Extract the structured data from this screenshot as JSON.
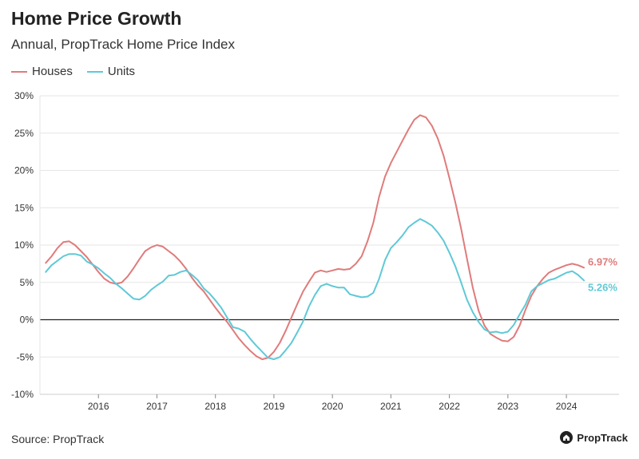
{
  "header": {
    "title": "Home Price Growth",
    "subtitle": "Annual, PropTrack Home Price Index"
  },
  "footer": {
    "source": "Source: PropTrack",
    "brand": "PropTrack"
  },
  "colors": {
    "houses": "#e07b7b",
    "units": "#5fc9d6",
    "axis": "#222222",
    "grid": "#e6e6e6"
  },
  "chart_data": {
    "type": "line",
    "title": "Home Price Growth",
    "subtitle": "Annual, PropTrack Home Price Index",
    "xlabel": "",
    "ylabel": "",
    "xlim": [
      2015.0,
      2024.9
    ],
    "ylim": [
      -10,
      30
    ],
    "y_ticks": [
      -10,
      -5,
      0,
      5,
      10,
      15,
      20,
      25,
      30
    ],
    "y_tick_labels": [
      "-10%",
      "-5%",
      "0%",
      "5%",
      "10%",
      "15%",
      "20%",
      "25%",
      "30%"
    ],
    "x_ticks": [
      2016,
      2017,
      2018,
      2019,
      2020,
      2021,
      2022,
      2023,
      2024
    ],
    "x_tick_labels": [
      "2016",
      "2017",
      "2018",
      "2019",
      "2020",
      "2021",
      "2022",
      "2023",
      "2024"
    ],
    "grid": "horizontal",
    "legend_position": "top-left",
    "series": [
      {
        "name": "Houses",
        "color": "#e07b7b",
        "end_label": "6.97%",
        "points": [
          [
            2015.1,
            7.6
          ],
          [
            2015.2,
            8.5
          ],
          [
            2015.3,
            9.6
          ],
          [
            2015.4,
            10.4
          ],
          [
            2015.5,
            10.5
          ],
          [
            2015.6,
            10.0
          ],
          [
            2015.7,
            9.2
          ],
          [
            2015.8,
            8.4
          ],
          [
            2015.9,
            7.4
          ],
          [
            2016.0,
            6.4
          ],
          [
            2016.1,
            5.5
          ],
          [
            2016.2,
            5.0
          ],
          [
            2016.3,
            4.8
          ],
          [
            2016.4,
            5.0
          ],
          [
            2016.5,
            5.8
          ],
          [
            2016.6,
            6.9
          ],
          [
            2016.7,
            8.1
          ],
          [
            2016.8,
            9.2
          ],
          [
            2016.9,
            9.7
          ],
          [
            2017.0,
            10.0
          ],
          [
            2017.1,
            9.8
          ],
          [
            2017.2,
            9.2
          ],
          [
            2017.3,
            8.6
          ],
          [
            2017.4,
            7.8
          ],
          [
            2017.5,
            6.8
          ],
          [
            2017.6,
            5.6
          ],
          [
            2017.7,
            4.6
          ],
          [
            2017.8,
            3.8
          ],
          [
            2017.9,
            2.7
          ],
          [
            2018.0,
            1.6
          ],
          [
            2018.1,
            0.6
          ],
          [
            2018.2,
            -0.3
          ],
          [
            2018.3,
            -1.4
          ],
          [
            2018.4,
            -2.5
          ],
          [
            2018.5,
            -3.4
          ],
          [
            2018.6,
            -4.2
          ],
          [
            2018.7,
            -4.9
          ],
          [
            2018.8,
            -5.3
          ],
          [
            2018.9,
            -5.1
          ],
          [
            2019.0,
            -4.3
          ],
          [
            2019.1,
            -3.1
          ],
          [
            2019.2,
            -1.5
          ],
          [
            2019.3,
            0.3
          ],
          [
            2019.4,
            2.1
          ],
          [
            2019.5,
            3.8
          ],
          [
            2019.6,
            5.1
          ],
          [
            2019.7,
            6.3
          ],
          [
            2019.8,
            6.6
          ],
          [
            2019.9,
            6.4
          ],
          [
            2020.0,
            6.6
          ],
          [
            2020.1,
            6.8
          ],
          [
            2020.2,
            6.7
          ],
          [
            2020.3,
            6.8
          ],
          [
            2020.4,
            7.5
          ],
          [
            2020.5,
            8.5
          ],
          [
            2020.6,
            10.5
          ],
          [
            2020.7,
            13.0
          ],
          [
            2020.8,
            16.5
          ],
          [
            2020.9,
            19.2
          ],
          [
            2021.0,
            21.0
          ],
          [
            2021.1,
            22.5
          ],
          [
            2021.2,
            24.0
          ],
          [
            2021.3,
            25.5
          ],
          [
            2021.4,
            26.8
          ],
          [
            2021.5,
            27.4
          ],
          [
            2021.6,
            27.1
          ],
          [
            2021.7,
            26.0
          ],
          [
            2021.8,
            24.3
          ],
          [
            2021.9,
            22.0
          ],
          [
            2022.0,
            19.0
          ],
          [
            2022.1,
            15.8
          ],
          [
            2022.2,
            12.2
          ],
          [
            2022.3,
            8.2
          ],
          [
            2022.4,
            4.3
          ],
          [
            2022.5,
            1.2
          ],
          [
            2022.6,
            -0.8
          ],
          [
            2022.7,
            -1.9
          ],
          [
            2022.8,
            -2.4
          ],
          [
            2022.9,
            -2.8
          ],
          [
            2023.0,
            -2.9
          ],
          [
            2023.1,
            -2.3
          ],
          [
            2023.2,
            -0.8
          ],
          [
            2023.3,
            1.3
          ],
          [
            2023.4,
            3.2
          ],
          [
            2023.5,
            4.5
          ],
          [
            2023.6,
            5.5
          ],
          [
            2023.7,
            6.3
          ],
          [
            2023.8,
            6.7
          ],
          [
            2023.9,
            7.0
          ],
          [
            2024.0,
            7.3
          ],
          [
            2024.1,
            7.5
          ],
          [
            2024.2,
            7.3
          ],
          [
            2024.3,
            6.97
          ]
        ]
      },
      {
        "name": "Units",
        "color": "#5fc9d6",
        "end_label": "5.26%",
        "points": [
          [
            2015.1,
            6.4
          ],
          [
            2015.2,
            7.3
          ],
          [
            2015.3,
            7.9
          ],
          [
            2015.4,
            8.5
          ],
          [
            2015.5,
            8.8
          ],
          [
            2015.6,
            8.8
          ],
          [
            2015.7,
            8.6
          ],
          [
            2015.8,
            7.8
          ],
          [
            2015.9,
            7.4
          ],
          [
            2016.0,
            6.9
          ],
          [
            2016.1,
            6.2
          ],
          [
            2016.2,
            5.6
          ],
          [
            2016.3,
            4.8
          ],
          [
            2016.4,
            4.2
          ],
          [
            2016.5,
            3.5
          ],
          [
            2016.6,
            2.8
          ],
          [
            2016.7,
            2.7
          ],
          [
            2016.8,
            3.2
          ],
          [
            2016.9,
            4.0
          ],
          [
            2017.0,
            4.6
          ],
          [
            2017.1,
            5.1
          ],
          [
            2017.2,
            5.9
          ],
          [
            2017.3,
            6.0
          ],
          [
            2017.4,
            6.4
          ],
          [
            2017.5,
            6.6
          ],
          [
            2017.6,
            6.0
          ],
          [
            2017.7,
            5.3
          ],
          [
            2017.8,
            4.2
          ],
          [
            2017.9,
            3.5
          ],
          [
            2018.0,
            2.6
          ],
          [
            2018.1,
            1.6
          ],
          [
            2018.2,
            0.3
          ],
          [
            2018.3,
            -1.0
          ],
          [
            2018.4,
            -1.2
          ],
          [
            2018.5,
            -1.6
          ],
          [
            2018.6,
            -2.6
          ],
          [
            2018.7,
            -3.5
          ],
          [
            2018.8,
            -4.3
          ],
          [
            2018.9,
            -5.1
          ],
          [
            2019.0,
            -5.3
          ],
          [
            2019.1,
            -5.0
          ],
          [
            2019.2,
            -4.1
          ],
          [
            2019.3,
            -3.1
          ],
          [
            2019.4,
            -1.7
          ],
          [
            2019.5,
            -0.2
          ],
          [
            2019.6,
            1.8
          ],
          [
            2019.7,
            3.3
          ],
          [
            2019.8,
            4.5
          ],
          [
            2019.9,
            4.8
          ],
          [
            2020.0,
            4.5
          ],
          [
            2020.1,
            4.3
          ],
          [
            2020.2,
            4.3
          ],
          [
            2020.3,
            3.4
          ],
          [
            2020.4,
            3.2
          ],
          [
            2020.5,
            3.0
          ],
          [
            2020.6,
            3.1
          ],
          [
            2020.7,
            3.6
          ],
          [
            2020.8,
            5.5
          ],
          [
            2020.9,
            8.0
          ],
          [
            2021.0,
            9.6
          ],
          [
            2021.1,
            10.4
          ],
          [
            2021.2,
            11.3
          ],
          [
            2021.3,
            12.4
          ],
          [
            2021.4,
            13.0
          ],
          [
            2021.5,
            13.5
          ],
          [
            2021.6,
            13.1
          ],
          [
            2021.7,
            12.6
          ],
          [
            2021.8,
            11.7
          ],
          [
            2021.9,
            10.6
          ],
          [
            2022.0,
            9.0
          ],
          [
            2022.1,
            7.2
          ],
          [
            2022.2,
            5.0
          ],
          [
            2022.3,
            2.7
          ],
          [
            2022.4,
            1.0
          ],
          [
            2022.5,
            -0.3
          ],
          [
            2022.6,
            -1.3
          ],
          [
            2022.7,
            -1.7
          ],
          [
            2022.8,
            -1.6
          ],
          [
            2022.9,
            -1.8
          ],
          [
            2023.0,
            -1.6
          ],
          [
            2023.1,
            -0.7
          ],
          [
            2023.2,
            0.7
          ],
          [
            2023.3,
            2.0
          ],
          [
            2023.4,
            3.8
          ],
          [
            2023.5,
            4.5
          ],
          [
            2023.6,
            4.9
          ],
          [
            2023.7,
            5.3
          ],
          [
            2023.8,
            5.5
          ],
          [
            2023.9,
            5.9
          ],
          [
            2024.0,
            6.3
          ],
          [
            2024.1,
            6.5
          ],
          [
            2024.2,
            6.0
          ],
          [
            2024.3,
            5.26
          ]
        ]
      }
    ]
  }
}
